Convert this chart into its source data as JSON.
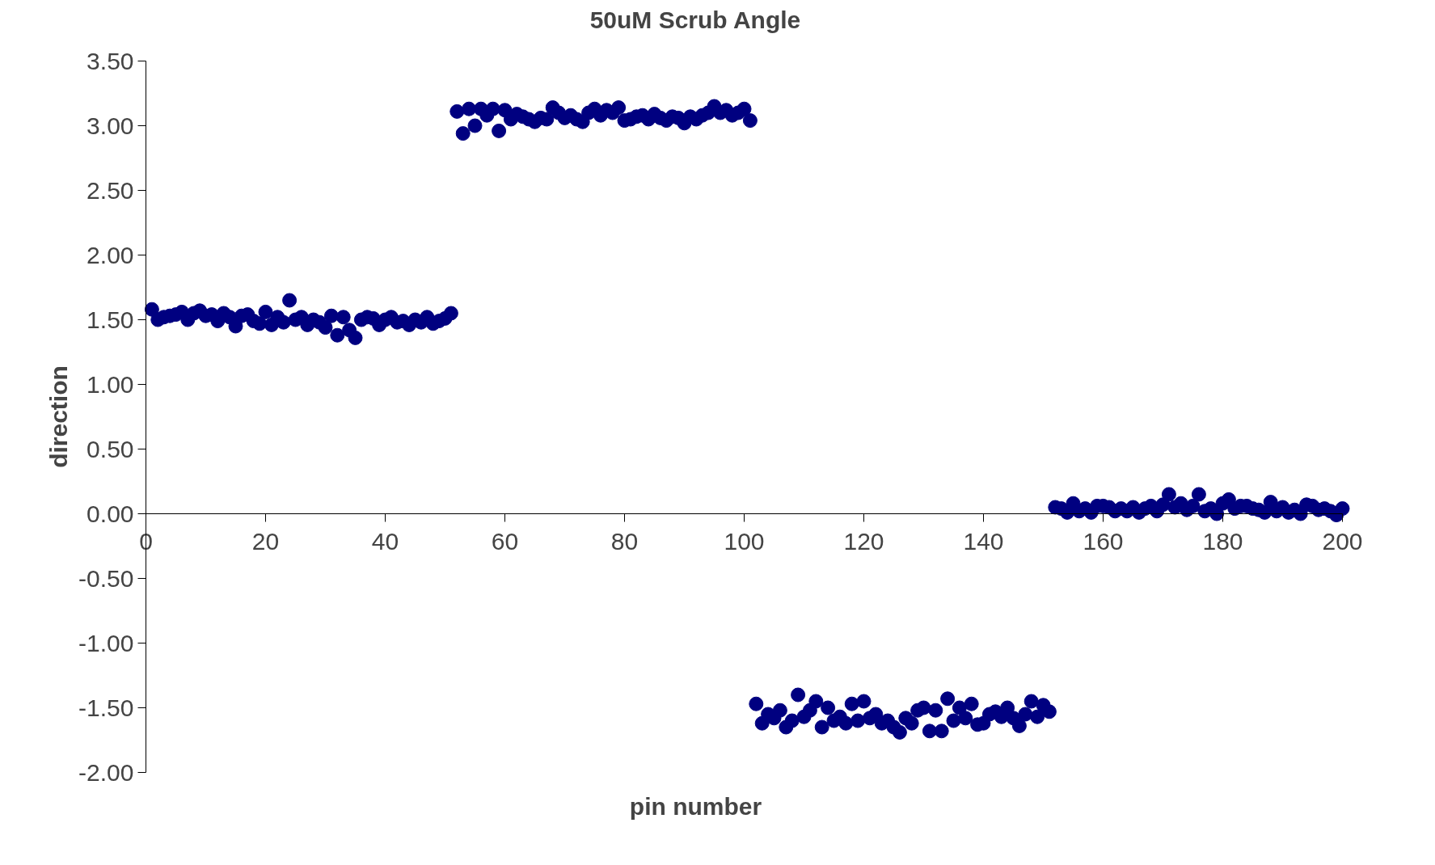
{
  "chart_data": {
    "type": "scatter",
    "title": "50uM Scrub Angle",
    "xlabel": "pin number",
    "ylabel": "direction",
    "x": [
      1,
      2,
      3,
      4,
      5,
      6,
      7,
      8,
      9,
      10,
      11,
      12,
      13,
      14,
      15,
      16,
      17,
      18,
      19,
      20,
      21,
      22,
      23,
      24,
      25,
      26,
      27,
      28,
      29,
      30,
      31,
      32,
      33,
      34,
      35,
      36,
      37,
      38,
      39,
      40,
      41,
      42,
      43,
      44,
      45,
      46,
      47,
      48,
      49,
      50,
      51,
      52,
      53,
      54,
      55,
      56,
      57,
      58,
      59,
      60,
      61,
      62,
      63,
      64,
      65,
      66,
      67,
      68,
      69,
      70,
      71,
      72,
      73,
      74,
      75,
      76,
      77,
      78,
      79,
      80,
      81,
      82,
      83,
      84,
      85,
      86,
      87,
      88,
      89,
      90,
      91,
      92,
      93,
      94,
      95,
      96,
      97,
      98,
      99,
      100,
      101,
      102,
      103,
      104,
      105,
      106,
      107,
      108,
      109,
      110,
      111,
      112,
      113,
      114,
      115,
      116,
      117,
      118,
      119,
      120,
      121,
      122,
      123,
      124,
      125,
      126,
      127,
      128,
      129,
      130,
      131,
      132,
      133,
      134,
      135,
      136,
      137,
      138,
      139,
      140,
      141,
      142,
      143,
      144,
      145,
      146,
      147,
      148,
      149,
      150,
      151,
      152,
      153,
      154,
      155,
      156,
      157,
      158,
      159,
      160,
      161,
      162,
      163,
      164,
      165,
      166,
      167,
      168,
      169,
      170,
      171,
      172,
      173,
      174,
      175,
      176,
      177,
      178,
      179,
      180,
      181,
      182,
      183,
      184,
      185,
      186,
      187,
      188,
      189,
      190,
      191,
      192,
      193,
      194,
      195,
      196,
      197,
      198,
      199,
      200
    ],
    "series": [
      {
        "color": "#000080",
        "values": [
          1.58,
          1.5,
          1.52,
          1.53,
          1.54,
          1.56,
          1.5,
          1.55,
          1.57,
          1.53,
          1.54,
          1.49,
          1.55,
          1.52,
          1.45,
          1.53,
          1.54,
          1.49,
          1.47,
          1.56,
          1.46,
          1.52,
          1.48,
          1.65,
          1.5,
          1.52,
          1.46,
          1.5,
          1.48,
          1.44,
          1.53,
          1.38,
          1.52,
          1.42,
          1.36,
          1.5,
          1.52,
          1.51,
          1.46,
          1.5,
          1.52,
          1.48,
          1.49,
          1.46,
          1.5,
          1.48,
          1.52,
          1.47,
          1.49,
          1.51,
          1.55,
          3.11,
          2.94,
          3.13,
          3.0,
          3.13,
          3.08,
          3.13,
          2.96,
          3.12,
          3.05,
          3.09,
          3.07,
          3.05,
          3.03,
          3.06,
          3.05,
          3.14,
          3.1,
          3.06,
          3.08,
          3.05,
          3.03,
          3.1,
          3.13,
          3.08,
          3.12,
          3.1,
          3.14,
          3.04,
          3.05,
          3.07,
          3.08,
          3.05,
          3.09,
          3.06,
          3.04,
          3.07,
          3.06,
          3.02,
          3.07,
          3.05,
          3.08,
          3.1,
          3.15,
          3.1,
          3.12,
          3.08,
          3.1,
          3.13,
          3.04,
          -1.47,
          -1.62,
          -1.55,
          -1.58,
          -1.52,
          -1.65,
          -1.6,
          -1.4,
          -1.57,
          -1.52,
          -1.45,
          -1.65,
          -1.5,
          -1.6,
          -1.57,
          -1.62,
          -1.47,
          -1.6,
          -1.45,
          -1.58,
          -1.55,
          -1.62,
          -1.6,
          -1.65,
          -1.69,
          -1.58,
          -1.62,
          -1.52,
          -1.5,
          -1.68,
          -1.52,
          -1.68,
          -1.43,
          -1.6,
          -1.5,
          -1.58,
          -1.47,
          -1.63,
          -1.62,
          -1.55,
          -1.53,
          -1.57,
          -1.5,
          -1.58,
          -1.64,
          -1.55,
          -1.45,
          -1.57,
          -1.48,
          -1.53,
          0.05,
          0.04,
          0.01,
          0.08,
          0.02,
          0.04,
          0.01,
          0.06,
          0.06,
          0.05,
          0.02,
          0.04,
          0.02,
          0.05,
          0.01,
          0.04,
          0.06,
          0.02,
          0.07,
          0.15,
          0.05,
          0.08,
          0.03,
          0.06,
          0.15,
          0.02,
          0.04,
          0.0,
          0.08,
          0.11,
          0.04,
          0.06,
          0.06,
          0.04,
          0.03,
          0.01,
          0.09,
          0.02,
          0.05,
          0.01,
          0.03,
          0.0,
          0.07,
          0.06,
          0.03,
          0.04,
          0.02,
          -0.01,
          0.04
        ]
      }
    ],
    "xlim": [
      0,
      200
    ],
    "xticks": [
      0,
      20,
      40,
      60,
      80,
      100,
      120,
      140,
      160,
      180,
      200
    ],
    "ylim": [
      -2,
      3.5
    ],
    "yticks": [
      {
        "value": -2,
        "label": "-2.00"
      },
      {
        "value": -1.5,
        "label": "-1.50"
      },
      {
        "value": -1,
        "label": "-1.00"
      },
      {
        "value": -0.5,
        "label": "-0.50"
      },
      {
        "value": 0,
        "label": "0.00"
      },
      {
        "value": 0.5,
        "label": "0.50"
      },
      {
        "value": 1,
        "label": "1.00"
      },
      {
        "value": 1.5,
        "label": "1.50"
      },
      {
        "value": 2,
        "label": "2.00"
      },
      {
        "value": 2.5,
        "label": "2.50"
      },
      {
        "value": 3,
        "label": "3.00"
      },
      {
        "value": 3.5,
        "label": "3.50"
      }
    ],
    "marker": "circle",
    "grid": false,
    "legend": false
  }
}
